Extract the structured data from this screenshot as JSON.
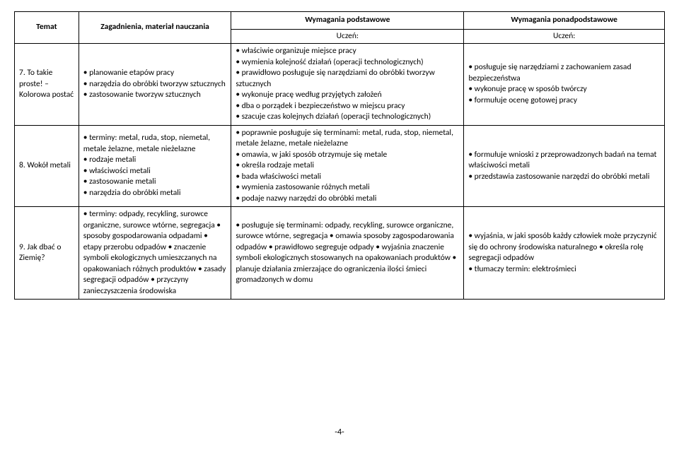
{
  "headers": {
    "topic": "Temat",
    "issues": "Zagadnienia, materiał nauczania",
    "basic": "Wymagania podstawowe",
    "extended": "Wymagania ponadpodstawowe",
    "student": "Uczeń:"
  },
  "rows": [
    {
      "topic": "7. To takie proste! – Kolorowa postać",
      "issues": "• planowanie etapów pracy\n• narzędzia do obróbki tworzyw sztucznych\n• zastosowanie tworzyw sztucznych",
      "basic": "• właściwie organizuje miejsce pracy\n• wymienia kolejność działań (operacji technologicznych)\n• prawidłowo posługuje się narzędziami do obróbki tworzyw sztucznych\n• wykonuje pracę według przyjętych założeń\n• dba o porządek i bezpieczeństwo w miejscu pracy\n• szacuje czas kolejnych działań (operacji technologicznych)",
      "extended": "• posługuje się narzędziami z zachowaniem zasad bezpieczeństwa\n• wykonuje pracę w sposób twórczy\n• formułuje ocenę gotowej pracy"
    },
    {
      "topic": "8. Wokół metali",
      "issues": "• terminy: metal, ruda, stop, niemetal, metale żelazne, metale nieżelazne\n• rodzaje metali\n• właściwości metali\n• zastosowanie metali\n• narzędzia do obróbki metali",
      "basic": "• poprawnie posługuje się terminami: metal, ruda, stop, niemetal, metale żelazne, metale nieżelazne\n• omawia, w jaki sposób otrzymuje się metale\n• określa rodzaje metali\n• bada właściwości metali\n• wymienia zastosowanie różnych metali\n• podaje nazwy narzędzi do obróbki metali",
      "extended": "• formułuje wnioski z przeprowadzonych badań na temat właściwości metali\n• przedstawia zastosowanie narzędzi do obróbki metali"
    },
    {
      "topic": "9. Jak dbać o Ziemię?",
      "issues": "• terminy: odpady, recykling, surowce organiczne, surowce wtórne, segregacja • sposoby gospodarowania odpadami • etapy przerobu odpadów • znaczenie symboli ekologicznych umieszczanych na opakowaniach różnych produktów • zasady segregacji odpadów • przyczyny zanieczyszczenia środowiska",
      "basic": "• posługuje się terminami: odpady, recykling, surowce organiczne, surowce wtórne, segregacja • omawia sposoby zagospodarowania odpadów • prawidłowo segreguje odpady • wyjaśnia znaczenie symboli ekologicznych stosowanych na opakowaniach produktów • planuje działania zmierzające do ograniczenia ilości śmieci gromadzonych w domu",
      "extended": "• wyjaśnia, w jaki sposób każdy człowiek może przyczynić się do ochrony środowiska naturalnego • określa rolę segregacji odpadów\n• tłumaczy termin: elektrośmieci"
    }
  ],
  "pageNumber": "-4-"
}
